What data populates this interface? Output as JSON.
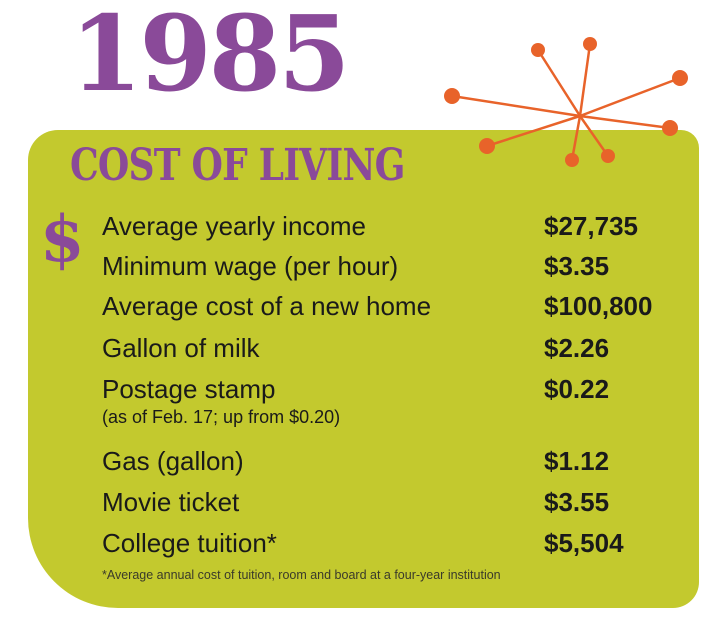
{
  "header": {
    "year": "1985"
  },
  "panel": {
    "title": "COST OF LIVING",
    "symbol": "$",
    "items": [
      {
        "label": "Average yearly income",
        "value": "$27,735"
      },
      {
        "label": "Minimum wage (per hour)",
        "value": "$3.35"
      },
      {
        "label": "Average cost of a new home",
        "value": "$100,800"
      },
      {
        "label": "Gallon of milk",
        "value": "$2.26"
      },
      {
        "label": "Postage stamp",
        "value": "$0.22",
        "note": "(as of Feb. 17; up from $0.20)"
      },
      {
        "label": "Gas (gallon)",
        "value": "$1.12"
      },
      {
        "label": "Movie ticket",
        "value": "$3.55"
      },
      {
        "label": "College tuition*",
        "value": "$5,504"
      }
    ],
    "footnote": "*Average annual cost of tuition, room and board at a four-year institution"
  },
  "colors": {
    "purple": "#8a4a99",
    "panel_green": "#c3c92e",
    "accent_orange": "#e8632a"
  },
  "decoration": {
    "icon": "starburst-icon"
  }
}
